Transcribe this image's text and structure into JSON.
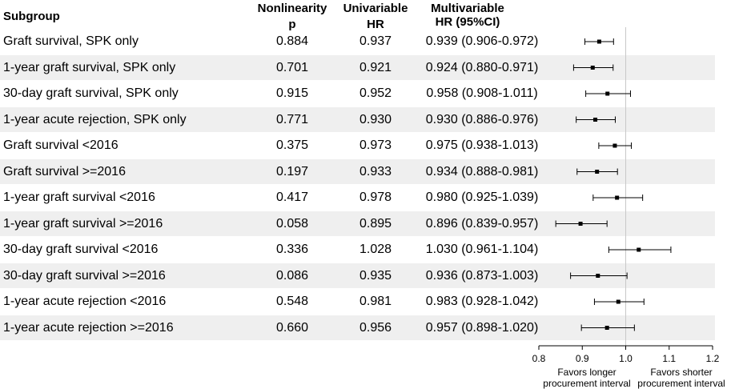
{
  "headers": {
    "subgroup": "Subgroup",
    "nonlinearity_line1": "Nonlinearity",
    "nonlinearity_line2": "p",
    "univariable_line1": "Univariable",
    "univariable_line2": "HR",
    "multivariable_line1": "Multivariable",
    "multivariable_line2": "HR (95%CI)"
  },
  "rows": [
    {
      "subgroup": "Graft survival, SPK only",
      "nonlinearity_p": "0.884",
      "univariable_hr": "0.937",
      "multivariable_text": "0.939 (0.906-0.972)"
    },
    {
      "subgroup": "1-year graft survival, SPK only",
      "nonlinearity_p": "0.701",
      "univariable_hr": "0.921",
      "multivariable_text": "0.924 (0.880-0.971)"
    },
    {
      "subgroup": "30-day graft survival, SPK only",
      "nonlinearity_p": "0.915",
      "univariable_hr": "0.952",
      "multivariable_text": "0.958 (0.908-1.011)"
    },
    {
      "subgroup": "1-year acute rejection, SPK only",
      "nonlinearity_p": "0.771",
      "univariable_hr": "0.930",
      "multivariable_text": "0.930 (0.886-0.976)"
    },
    {
      "subgroup": "Graft survival <2016",
      "nonlinearity_p": "0.375",
      "univariable_hr": "0.973",
      "multivariable_text": "0.975 (0.938-1.013)"
    },
    {
      "subgroup": "Graft survival >=2016",
      "nonlinearity_p": "0.197",
      "univariable_hr": "0.933",
      "multivariable_text": "0.934 (0.888-0.981)"
    },
    {
      "subgroup": "1-year graft survival <2016",
      "nonlinearity_p": "0.417",
      "univariable_hr": "0.978",
      "multivariable_text": "0.980 (0.925-1.039)"
    },
    {
      "subgroup": "1-year graft survival >=2016",
      "nonlinearity_p": "0.058",
      "univariable_hr": "0.895",
      "multivariable_text": "0.896 (0.839-0.957)"
    },
    {
      "subgroup": "30-day graft survival <2016",
      "nonlinearity_p": "0.336",
      "univariable_hr": "1.028",
      "multivariable_text": "1.030 (0.961-1.104)"
    },
    {
      "subgroup": "30-day graft survival >=2016",
      "nonlinearity_p": "0.086",
      "univariable_hr": "0.935",
      "multivariable_text": "0.936 (0.873-1.003)"
    },
    {
      "subgroup": "1-year acute rejection <2016",
      "nonlinearity_p": "0.548",
      "univariable_hr": "0.981",
      "multivariable_text": "0.983 (0.928-1.042)"
    },
    {
      "subgroup": "1-year acute rejection >=2016",
      "nonlinearity_p": "0.660",
      "univariable_hr": "0.956",
      "multivariable_text": "0.957 (0.898-1.020)"
    }
  ],
  "favors": {
    "left_line1": "Favors longer",
    "left_line2": "procurement interval",
    "right_line1": "Favors shorter",
    "right_line2": "procurement interval"
  },
  "colors": {
    "stripe": "#efefef",
    "point": "#000000",
    "reference_line": "#c8c8c8"
  },
  "chart_data": {
    "type": "forest",
    "categories": [
      "Graft survival, SPK only",
      "1-year graft survival, SPK only",
      "30-day graft survival, SPK only",
      "1-year acute rejection, SPK only",
      "Graft survival <2016",
      "Graft survival >=2016",
      "1-year graft survival <2016",
      "1-year graft survival >=2016",
      "30-day graft survival <2016",
      "30-day graft survival >=2016",
      "1-year acute rejection <2016",
      "1-year acute rejection >=2016"
    ],
    "hr": [
      0.939,
      0.924,
      0.958,
      0.93,
      0.975,
      0.934,
      0.98,
      0.896,
      1.03,
      0.936,
      0.983,
      0.957
    ],
    "ci_low": [
      0.906,
      0.88,
      0.908,
      0.886,
      0.938,
      0.888,
      0.925,
      0.839,
      0.961,
      0.873,
      0.928,
      0.898
    ],
    "ci_high": [
      0.972,
      0.971,
      1.011,
      0.976,
      1.013,
      0.981,
      1.039,
      0.957,
      1.104,
      1.003,
      1.042,
      1.02
    ],
    "xlim": [
      0.8,
      1.2
    ],
    "xticks": [
      "0.8",
      "0.9",
      "1.0",
      "1.1",
      "1.2"
    ],
    "reference_value": 1.0
  }
}
